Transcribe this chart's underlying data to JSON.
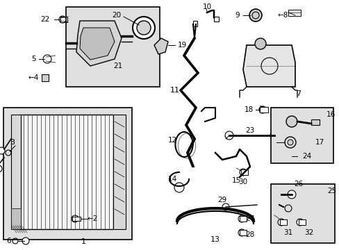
{
  "background_color": "#ffffff",
  "fig_width": 4.89,
  "fig_height": 3.6,
  "dpi": 100,
  "lc": "#000000",
  "gray_fill": "#e8e8e8",
  "box_fill": "#e0e0e0"
}
